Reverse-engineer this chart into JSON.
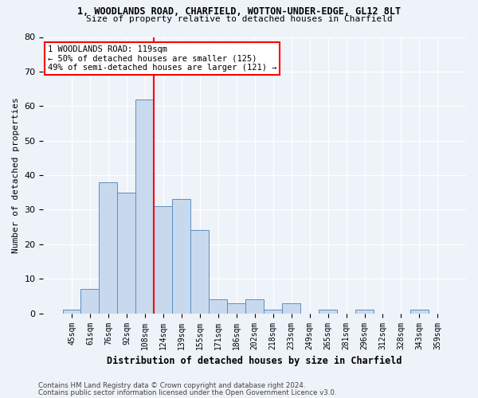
{
  "title1": "1, WOODLANDS ROAD, CHARFIELD, WOTTON-UNDER-EDGE, GL12 8LT",
  "title2": "Size of property relative to detached houses in Charfield",
  "xlabel": "Distribution of detached houses by size in Charfield",
  "ylabel": "Number of detached properties",
  "bar_labels": [
    "45sqm",
    "61sqm",
    "76sqm",
    "92sqm",
    "108sqm",
    "124sqm",
    "139sqm",
    "155sqm",
    "171sqm",
    "186sqm",
    "202sqm",
    "218sqm",
    "233sqm",
    "249sqm",
    "265sqm",
    "281sqm",
    "296sqm",
    "312sqm",
    "328sqm",
    "343sqm",
    "359sqm"
  ],
  "bar_values": [
    1,
    7,
    38,
    35,
    62,
    31,
    33,
    24,
    4,
    3,
    4,
    1,
    3,
    0,
    1,
    0,
    1,
    0,
    0,
    1,
    0
  ],
  "bar_color": "#c9d9ed",
  "bar_edge_color": "#5a8fc0",
  "vline_x": 4.5,
  "annotation_line1": "1 WOODLANDS ROAD: 119sqm",
  "annotation_line2": "← 50% of detached houses are smaller (125)",
  "annotation_line3": "49% of semi-detached houses are larger (121) →",
  "annotation_box_color": "white",
  "annotation_box_edge_color": "red",
  "vline_color": "red",
  "ylim": [
    0,
    80
  ],
  "yticks": [
    0,
    10,
    20,
    30,
    40,
    50,
    60,
    70,
    80
  ],
  "footer1": "Contains HM Land Registry data © Crown copyright and database right 2024.",
  "footer2": "Contains public sector information licensed under the Open Government Licence v3.0.",
  "bg_color": "#eef2f9",
  "plot_bg_color": "#eef2f9"
}
